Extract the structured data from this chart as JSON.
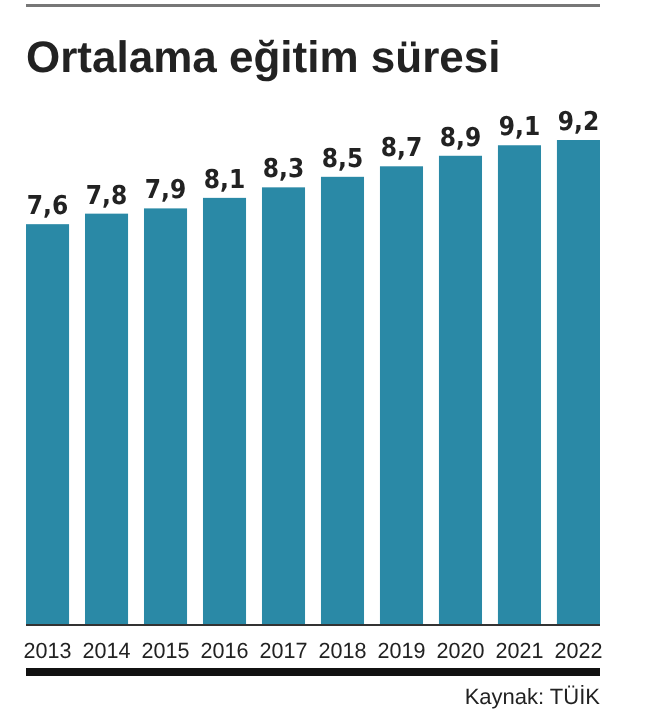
{
  "chart_data": {
    "type": "bar",
    "title": "Ortalama eğitim süresi",
    "categories": [
      "2013",
      "2014",
      "2015",
      "2016",
      "2017",
      "2018",
      "2019",
      "2020",
      "2021",
      "2022"
    ],
    "values": [
      7.6,
      7.8,
      7.9,
      8.1,
      8.3,
      8.5,
      8.7,
      8.9,
      9.1,
      9.2
    ],
    "value_labels": [
      "7,6",
      "7,8",
      "7,9",
      "8,1",
      "8,3",
      "8,5",
      "8,7",
      "8,9",
      "9,1",
      "9,2"
    ],
    "color": "#2a89a6",
    "annotations": [
      "Kaynak: TÜİK"
    ]
  }
}
